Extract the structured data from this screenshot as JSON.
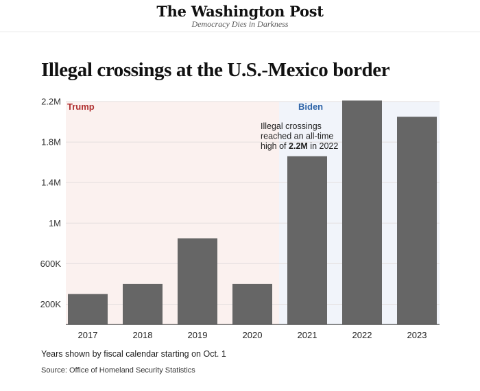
{
  "masthead": {
    "brand": "The Washington Post",
    "tagline": "Democracy Dies in Darkness"
  },
  "chart_data": {
    "type": "bar",
    "title": "Illegal crossings at the U.S.-Mexico border",
    "xlabel": "",
    "ylabel": "",
    "categories": [
      "2017",
      "2018",
      "2019",
      "2020",
      "2021",
      "2022",
      "2023"
    ],
    "values": [
      300000,
      400000,
      850000,
      400000,
      1660000,
      2210000,
      2050000
    ],
    "ylim": [
      0,
      2200000
    ],
    "yticks": [
      200000,
      600000,
      1000000,
      1400000,
      1800000,
      2200000
    ],
    "ytick_labels": [
      "200K",
      "600K",
      "1M",
      "1.4M",
      "1.8M",
      "2.2M"
    ],
    "grid": true,
    "bar_color": "#666666",
    "eras": [
      {
        "label": "Trump",
        "from": "2017",
        "to": "2020",
        "label_color": "#b03030",
        "background": "#fbf1ef"
      },
      {
        "label": "Biden",
        "from": "2021",
        "to": "2023",
        "label_color": "#2e64a8",
        "background": "#f1f4fa"
      }
    ],
    "annotation": {
      "lines": [
        "Illegal crossings",
        "reached an all-time"
      ],
      "last_line_prefix": "high of ",
      "last_line_bold": "2.2M",
      "last_line_suffix": " in 2022"
    }
  },
  "footer": {
    "note": "Years shown by fiscal calendar starting on Oct. 1",
    "source": "Source: Office of Homeland Security Statistics"
  }
}
